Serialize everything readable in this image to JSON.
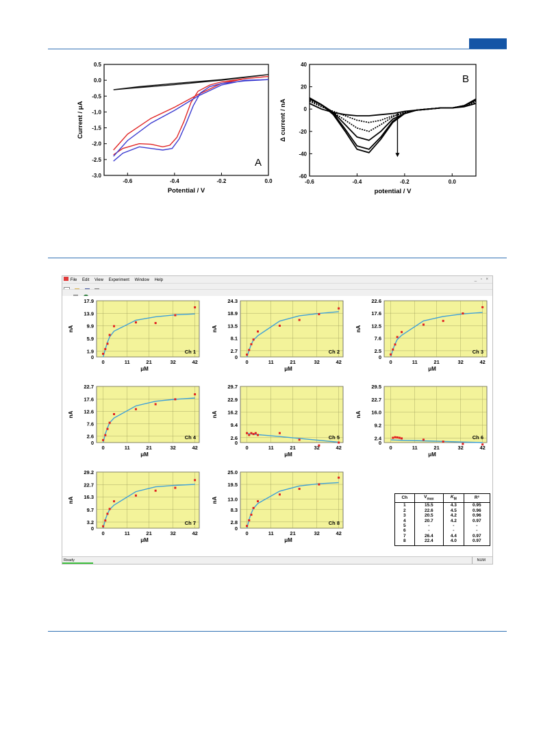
{
  "chart_data": [
    {
      "id": "A",
      "type": "line",
      "panel_label": "A",
      "xlabel": "Potential / V",
      "ylabel": "Current / μA",
      "xlim": [
        -0.7,
        0.0
      ],
      "ylim": [
        -3.0,
        0.5
      ],
      "xticks": [
        -0.6,
        -0.4,
        -0.2,
        0.0
      ],
      "xtick_labels": [
        "-0.6",
        "-0.4",
        "-0.2",
        "0.0"
      ],
      "yticks": [
        0.5,
        0.0,
        -0.5,
        -1.0,
        -1.5,
        -2.0,
        -2.5,
        -3.0
      ],
      "ytick_labels": [
        "0.5",
        "0.0",
        "-0.5",
        "-1.0",
        "-1.5",
        "-2.0",
        "-2.5",
        "-3.0"
      ],
      "series": [
        {
          "color": "#111111",
          "x": [
            -0.66,
            -0.55,
            -0.4,
            -0.2,
            0.0,
            -0.2,
            -0.4,
            -0.6,
            -0.66
          ],
          "y": [
            -0.3,
            -0.2,
            -0.1,
            0.02,
            0.18,
            0.0,
            -0.14,
            -0.26,
            -0.3
          ]
        },
        {
          "color": "#e02525",
          "x": [
            -0.66,
            -0.62,
            -0.55,
            -0.5,
            -0.45,
            -0.42,
            -0.39,
            -0.36,
            -0.33,
            -0.3,
            -0.25,
            -0.2,
            -0.1,
            0.0,
            -0.1,
            -0.2,
            -0.3,
            -0.4,
            -0.5,
            -0.6,
            -0.66
          ],
          "y": [
            -2.35,
            -2.15,
            -2.0,
            -2.02,
            -2.1,
            -2.05,
            -1.8,
            -1.3,
            -0.7,
            -0.35,
            -0.15,
            -0.05,
            0.05,
            0.12,
            0.05,
            -0.1,
            -0.45,
            -0.85,
            -1.2,
            -1.7,
            -2.2
          ]
        },
        {
          "color": "#3b3bd0",
          "x": [
            -0.66,
            -0.62,
            -0.55,
            -0.5,
            -0.45,
            -0.41,
            -0.38,
            -0.35,
            -0.32,
            -0.29,
            -0.25,
            -0.2,
            -0.1,
            0.0,
            -0.1,
            -0.2,
            -0.3,
            -0.4,
            -0.5,
            -0.6,
            -0.66
          ],
          "y": [
            -2.55,
            -2.3,
            -2.1,
            -2.15,
            -2.2,
            -2.15,
            -1.85,
            -1.35,
            -0.8,
            -0.4,
            -0.2,
            -0.1,
            -0.02,
            0.02,
            0.0,
            -0.15,
            -0.5,
            -0.95,
            -1.35,
            -1.9,
            -2.4
          ]
        }
      ]
    },
    {
      "id": "B",
      "type": "line",
      "panel_label": "B",
      "xlabel": "potential / V",
      "ylabel": "Δ current / nA",
      "xlim": [
        -0.6,
        0.1
      ],
      "ylim": [
        -60,
        40
      ],
      "xticks": [
        -0.6,
        -0.4,
        -0.2,
        0.0
      ],
      "xtick_labels": [
        "-0.6",
        "-0.4",
        "-0.2",
        "0.0"
      ],
      "yticks": [
        40,
        20,
        0,
        -20,
        -40,
        -60
      ],
      "ytick_labels": [
        "40",
        "20",
        "0",
        "-20",
        "-40",
        "-60"
      ],
      "arrow": {
        "x": -0.23,
        "y_from": -3,
        "y_to": -43
      },
      "series": [
        {
          "x": [
            -0.6,
            -0.55,
            -0.5,
            -0.45,
            -0.4,
            -0.35,
            -0.3,
            -0.25,
            -0.2,
            -0.15,
            -0.1,
            -0.05,
            0.0,
            0.05,
            0.1
          ],
          "y": [
            5,
            0,
            -3,
            -5,
            -6,
            -6,
            -5,
            -4,
            -2,
            -1,
            0,
            1,
            1,
            2,
            5
          ]
        },
        {
          "x": [
            -0.6,
            -0.55,
            -0.5,
            -0.45,
            -0.4,
            -0.35,
            -0.3,
            -0.25,
            -0.2,
            -0.15,
            -0.1,
            -0.05,
            0.0,
            0.05,
            0.1
          ],
          "y": [
            7,
            2,
            -2,
            -6,
            -10,
            -12,
            -10,
            -6,
            -3,
            -1,
            0,
            1,
            1,
            3,
            6
          ]
        },
        {
          "x": [
            -0.6,
            -0.55,
            -0.5,
            -0.45,
            -0.4,
            -0.35,
            -0.3,
            -0.25,
            -0.2,
            -0.15,
            -0.1,
            -0.05,
            0.0,
            0.05,
            0.1
          ],
          "y": [
            8,
            3,
            -3,
            -10,
            -17,
            -20,
            -14,
            -7,
            -3,
            -1,
            0,
            1,
            1,
            3,
            7
          ]
        },
        {
          "x": [
            -0.6,
            -0.55,
            -0.5,
            -0.45,
            -0.4,
            -0.35,
            -0.3,
            -0.25,
            -0.2,
            -0.15,
            -0.1,
            -0.05,
            0.0,
            0.05,
            0.1
          ],
          "y": [
            9,
            4,
            -3,
            -14,
            -25,
            -28,
            -20,
            -9,
            -4,
            -1,
            0,
            1,
            1,
            3,
            8
          ]
        },
        {
          "x": [
            -0.6,
            -0.55,
            -0.5,
            -0.45,
            -0.4,
            -0.35,
            -0.3,
            -0.25,
            -0.2,
            -0.15,
            -0.1,
            -0.05,
            0.0,
            0.05,
            0.1
          ],
          "y": [
            10,
            4,
            -4,
            -18,
            -33,
            -36,
            -25,
            -11,
            -4,
            -1,
            0,
            1,
            1,
            3,
            8
          ]
        },
        {
          "x": [
            -0.6,
            -0.55,
            -0.5,
            -0.45,
            -0.4,
            -0.35,
            -0.3,
            -0.25,
            -0.2,
            -0.15,
            -0.1,
            -0.05,
            0.0,
            0.05,
            0.1
          ],
          "y": [
            10,
            4,
            -5,
            -20,
            -36,
            -39,
            -27,
            -12,
            -4,
            -1,
            0,
            1,
            1,
            3,
            9
          ]
        }
      ]
    },
    {
      "id": "Ch1",
      "type": "scatter",
      "label": "Ch 1",
      "xlabel": "μM",
      "ylabel": "nA",
      "ylim": [
        0,
        17.9
      ],
      "yticks": [
        0,
        1.9,
        5.9,
        9.9,
        13.9,
        17.9
      ],
      "ytick_labels": [
        "0",
        "1.9",
        "5.9",
        "9.9",
        "13.9",
        "17.9"
      ],
      "xlim": [
        -3,
        44
      ],
      "xticks": [
        0,
        11,
        21,
        32,
        42
      ],
      "xtick_labels": [
        "0",
        "11",
        "21",
        "32",
        "42"
      ],
      "points": {
        "x": [
          0,
          1,
          2,
          3,
          5,
          15,
          24,
          33,
          42
        ],
        "y": [
          1,
          2.5,
          4.2,
          7,
          9.8,
          11,
          10.8,
          13.3,
          15.8
        ]
      },
      "fit": {
        "x": [
          0,
          1,
          2,
          3,
          5,
          15,
          24,
          33,
          42
        ],
        "y": [
          0,
          2.5,
          4.7,
          6.4,
          8.2,
          11.7,
          12.8,
          13.4,
          13.7
        ]
      }
    },
    {
      "id": "Ch2",
      "type": "scatter",
      "label": "Ch 2",
      "xlabel": "μM",
      "ylabel": "nA",
      "ylim": [
        0,
        24.3
      ],
      "yticks": [
        0,
        2.7,
        8.1,
        13.5,
        18.9,
        24.3
      ],
      "ytick_labels": [
        "0",
        "2.7",
        "8.1",
        "13.5",
        "18.9",
        "24.3"
      ],
      "xlim": [
        -3,
        44
      ],
      "xticks": [
        0,
        11,
        21,
        32,
        42
      ],
      "xtick_labels": [
        "0",
        "11",
        "21",
        "32",
        "42"
      ],
      "points": {
        "x": [
          0,
          1,
          2,
          3,
          5,
          15,
          24,
          33,
          42
        ],
        "y": [
          1,
          3,
          5.5,
          7.5,
          11,
          13.5,
          16,
          18.5,
          21
        ]
      },
      "fit": {
        "x": [
          0,
          1,
          2,
          3,
          5,
          15,
          24,
          33,
          42
        ],
        "y": [
          0,
          3,
          5.5,
          7.3,
          9.2,
          15.5,
          17.8,
          18.8,
          19.6
        ]
      }
    },
    {
      "id": "Ch3",
      "type": "scatter",
      "label": "Ch 3",
      "xlabel": "μM",
      "ylabel": "nA",
      "ylim": [
        0,
        22.6
      ],
      "yticks": [
        0,
        2.5,
        7.6,
        12.5,
        17.6,
        22.6
      ],
      "ytick_labels": [
        "0",
        "2.5",
        "7.6",
        "12.5",
        "17.6",
        "22.6"
      ],
      "xlim": [
        -3,
        44
      ],
      "xticks": [
        0,
        11,
        21,
        32,
        42
      ],
      "xtick_labels": [
        "0",
        "11",
        "21",
        "32",
        "42"
      ],
      "points": {
        "x": [
          0,
          1,
          2,
          3,
          5,
          15,
          24,
          33,
          42
        ],
        "y": [
          1,
          3,
          5,
          8,
          10,
          13,
          14.5,
          17.5,
          20
        ]
      },
      "fit": {
        "x": [
          0,
          1,
          2,
          3,
          5,
          15,
          24,
          33,
          42
        ],
        "y": [
          0,
          3,
          5.3,
          7,
          8.7,
          14.5,
          16.3,
          17.3,
          17.9
        ]
      }
    },
    {
      "id": "Ch4",
      "type": "scatter",
      "label": "Ch 4",
      "xlabel": "μM",
      "ylabel": "nA",
      "ylim": [
        0,
        22.7
      ],
      "yticks": [
        0,
        2.6,
        7.6,
        12.6,
        17.6,
        22.7
      ],
      "ytick_labels": [
        "0",
        "2.6",
        "7.6",
        "12.6",
        "17.6",
        "22.7"
      ],
      "xlim": [
        -3,
        44
      ],
      "xticks": [
        0,
        11,
        21,
        32,
        42
      ],
      "xtick_labels": [
        "0",
        "11",
        "21",
        "32",
        "42"
      ],
      "points": {
        "x": [
          0,
          1,
          2,
          3,
          5,
          15,
          24,
          33,
          42
        ],
        "y": [
          1,
          3,
          5.5,
          8,
          11.5,
          13.5,
          15.5,
          17.5,
          19.5
        ]
      },
      "fit": {
        "x": [
          0,
          1,
          2,
          3,
          5,
          15,
          24,
          33,
          42
        ],
        "y": [
          0,
          3.5,
          6,
          8,
          9.9,
          14.8,
          16.7,
          17.5,
          18
        ]
      }
    },
    {
      "id": "Ch5",
      "type": "scatter",
      "label": "Ch 5",
      "xlabel": "μM",
      "ylabel": "nA",
      "ylim": [
        0,
        29.7
      ],
      "yticks": [
        0,
        2.6,
        9.4,
        16.2,
        22.9,
        29.7
      ],
      "ytick_labels": [
        "0",
        "2.6",
        "9.4",
        "16.2",
        "22.9",
        "29.7"
      ],
      "xlim": [
        -3,
        44
      ],
      "xticks": [
        0,
        11,
        21,
        32,
        42
      ],
      "xtick_labels": [
        "0",
        "11",
        "21",
        "32",
        "42"
      ],
      "points": {
        "x": [
          0,
          1,
          2,
          3,
          4,
          5,
          15,
          24,
          33,
          42
        ],
        "y": [
          5,
          4,
          5,
          4.5,
          5,
          4,
          5,
          1.5,
          -1.5,
          0
        ]
      },
      "fit": {
        "x": [
          0,
          5,
          15,
          24,
          33,
          42
        ],
        "y": [
          4.8,
          4.2,
          3.2,
          2.2,
          1.2,
          0.2
        ]
      }
    },
    {
      "id": "Ch6",
      "type": "scatter",
      "label": "Ch 6",
      "xlabel": "μM",
      "ylabel": "nA",
      "ylim": [
        0,
        29.5
      ],
      "yticks": [
        0,
        2.4,
        9.2,
        16.0,
        22.7,
        29.5
      ],
      "ytick_labels": [
        "0",
        "2.4",
        "9.2",
        "16.0",
        "22.7",
        "29.5"
      ],
      "xlim": [
        -3,
        44
      ],
      "xticks": [
        0,
        11,
        21,
        32,
        42
      ],
      "xtick_labels": [
        "0",
        "11",
        "21",
        "32",
        "42"
      ],
      "points": {
        "x": [
          1,
          2,
          3,
          4,
          5,
          15,
          24,
          33,
          42
        ],
        "y": [
          2.5,
          2.8,
          2.7,
          2.5,
          2.2,
          1.5,
          0.5,
          -0.7,
          -1
        ]
      },
      "fit": {
        "x": [
          0,
          5,
          15,
          24,
          33,
          42
        ],
        "y": [
          1.4,
          1.2,
          0.9,
          0.6,
          0.3,
          0
        ]
      }
    },
    {
      "id": "Ch7",
      "type": "scatter",
      "label": "Ch 7",
      "xlabel": "μM",
      "ylabel": "nA",
      "ylim": [
        0,
        29.2
      ],
      "yticks": [
        0,
        3.2,
        9.7,
        16.3,
        22.7,
        29.2
      ],
      "ytick_labels": [
        "0",
        "3.2",
        "9.7",
        "16.3",
        "22.7",
        "29.2"
      ],
      "xlim": [
        -3,
        44
      ],
      "xticks": [
        0,
        11,
        21,
        32,
        42
      ],
      "xtick_labels": [
        "0",
        "11",
        "21",
        "32",
        "42"
      ],
      "points": {
        "x": [
          0,
          1,
          2,
          3,
          5,
          15,
          24,
          33,
          42
        ],
        "y": [
          1,
          4,
          7.5,
          10,
          14,
          17,
          19.5,
          21,
          25
        ]
      },
      "fit": {
        "x": [
          0,
          1,
          2,
          3,
          5,
          15,
          24,
          33,
          42
        ],
        "y": [
          0,
          4.5,
          7.5,
          9.7,
          12,
          19,
          21.5,
          22.3,
          22.8
        ]
      }
    },
    {
      "id": "Ch8",
      "type": "scatter",
      "label": "Ch 8",
      "xlabel": "μM",
      "ylabel": "nA",
      "ylim": [
        0,
        25.0
      ],
      "yticks": [
        0,
        2.8,
        8.3,
        13.0,
        19.5,
        25.0
      ],
      "ytick_labels": [
        "0",
        "2.8",
        "8.3",
        "13.0",
        "19.5",
        "25.0"
      ],
      "xlim": [
        -3,
        44
      ],
      "xticks": [
        0,
        11,
        21,
        32,
        42
      ],
      "xtick_labels": [
        "0",
        "11",
        "21",
        "32",
        "42"
      ],
      "points": {
        "x": [
          0,
          1,
          2,
          3,
          5,
          15,
          24,
          33,
          42
        ],
        "y": [
          1,
          3.5,
          6,
          9,
          12,
          15,
          17.5,
          19.5,
          22.5
        ]
      },
      "fit": {
        "x": [
          0,
          1,
          2,
          3,
          5,
          15,
          24,
          33,
          42
        ],
        "y": [
          0,
          4,
          6.7,
          8.8,
          11,
          16.5,
          18.8,
          19.8,
          20.3
        ]
      }
    }
  ],
  "software": {
    "menu": [
      "File",
      "Edit",
      "View",
      "Experiment",
      "Window",
      "Help"
    ],
    "window_controls": "_ ▫ ×",
    "status": "Ready",
    "status_right": "NUM"
  },
  "kinetics_table": {
    "headers": [
      "Ch",
      "V",
      "K",
      "R²"
    ],
    "header_subs": [
      "",
      "max",
      "M",
      ""
    ],
    "rows": [
      [
        "1",
        "15.5",
        "4.3",
        "0.95"
      ],
      [
        "2",
        "22.6",
        "4.5",
        "0.96"
      ],
      [
        "3",
        "20.5",
        "4.2",
        "0.96"
      ],
      [
        "4",
        "20.7",
        "4.2",
        "0.97"
      ],
      [
        "5",
        "-",
        "-",
        "-"
      ],
      [
        "6",
        "-",
        "-",
        "-"
      ],
      [
        "7",
        "26.4",
        "4.4",
        "0.97"
      ],
      [
        "8",
        "22.4",
        "4.0",
        "0.97"
      ]
    ]
  },
  "colors": {
    "accent": "#1455a6",
    "rule": "#2f6fb3",
    "plot_bg": "#f3f39a",
    "fit_line": "#3ea0d8",
    "point": "#e02020"
  }
}
